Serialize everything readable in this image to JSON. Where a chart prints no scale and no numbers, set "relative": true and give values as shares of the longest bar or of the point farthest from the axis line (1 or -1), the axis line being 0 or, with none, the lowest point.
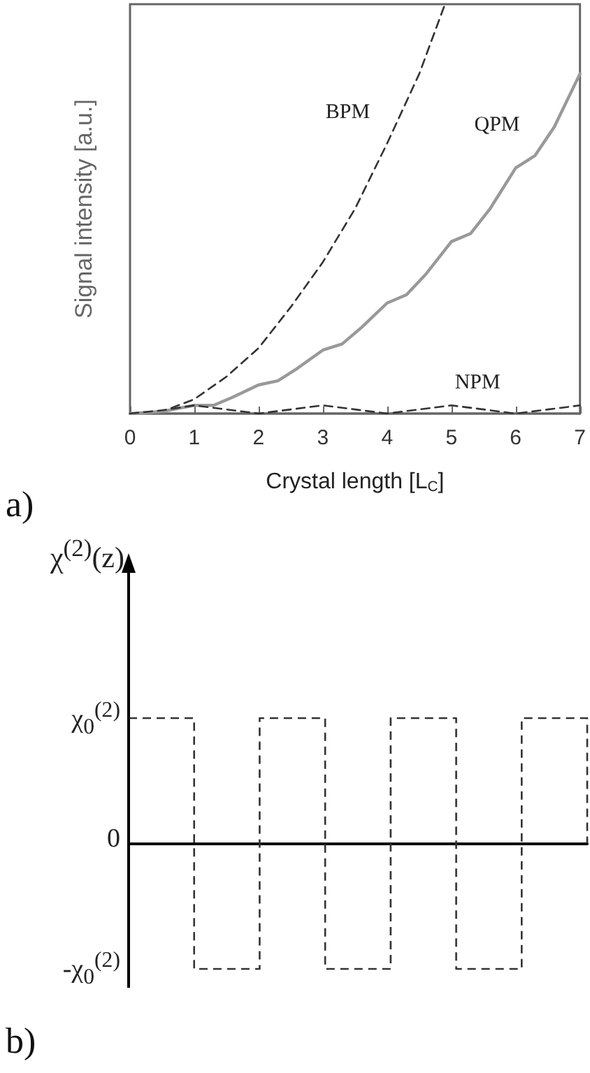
{
  "chart_data": [
    {
      "type": "line",
      "xlabel": "Crystal length [L$_{C}$]",
      "ylabel": "Signal intensity [a.u.]",
      "relative": true,
      "xlim": [
        0,
        7
      ],
      "xticks": [
        0,
        1,
        2,
        3,
        4,
        5,
        6,
        7
      ],
      "grid": false,
      "legend": false,
      "marker": "none",
      "series": [
        {
          "name": "BPM",
          "color": "#333333",
          "line_style": "dashed",
          "x": [
            0,
            0.5,
            1,
            1.5,
            2,
            2.5,
            3,
            3.5,
            4,
            4.5,
            4.9
          ],
          "values": [
            0,
            0.005,
            0.035,
            0.09,
            0.16,
            0.26,
            0.37,
            0.5,
            0.66,
            0.83,
            1
          ]
        },
        {
          "name": "QPM",
          "color": "#999999",
          "line_style": "solid",
          "x": [
            0,
            0.5,
            1,
            1.3,
            1.6,
            2,
            2.3,
            2.6,
            3,
            3.3,
            3.6,
            4,
            4.3,
            4.6,
            5,
            5.3,
            5.6,
            6,
            6.3,
            6.6,
            7
          ],
          "values": [
            0,
            0.005,
            0.02,
            0.02,
            0.04,
            0.07,
            0.08,
            0.11,
            0.155,
            0.17,
            0.21,
            0.27,
            0.29,
            0.34,
            0.42,
            0.44,
            0.5,
            0.6,
            0.63,
            0.7,
            0.83
          ]
        },
        {
          "name": "NPM",
          "color": "#333333",
          "line_style": "dashed",
          "x": [
            0,
            0.5,
            1,
            1.5,
            2,
            2.5,
            3,
            3.5,
            4,
            4.5,
            5,
            5.5,
            6,
            6.5,
            7
          ],
          "values": [
            0,
            0.008,
            0.02,
            0.01,
            0,
            0.01,
            0.02,
            0.01,
            0,
            0.01,
            0.02,
            0.01,
            0,
            0.01,
            0.02
          ]
        }
      ],
      "annotations": [
        "a)"
      ]
    },
    {
      "type": "step",
      "ylabel": "χ$^{(2)}$(z)",
      "relative": true,
      "categories": [
        null,
        null,
        null,
        null,
        null,
        null,
        null,
        null
      ],
      "grid": false,
      "legend": false,
      "marker": "none",
      "line_style": "dashed",
      "series": [
        {
          "color": "#333333",
          "values": [
            1,
            -1,
            1,
            -1,
            1,
            -1,
            1,
            0
          ]
        }
      ],
      "annotations": [
        "χ$_{0}$$^{(2)}$",
        "0",
        "-χ$_{0}$$^{(2)}$",
        "b)"
      ]
    }
  ]
}
